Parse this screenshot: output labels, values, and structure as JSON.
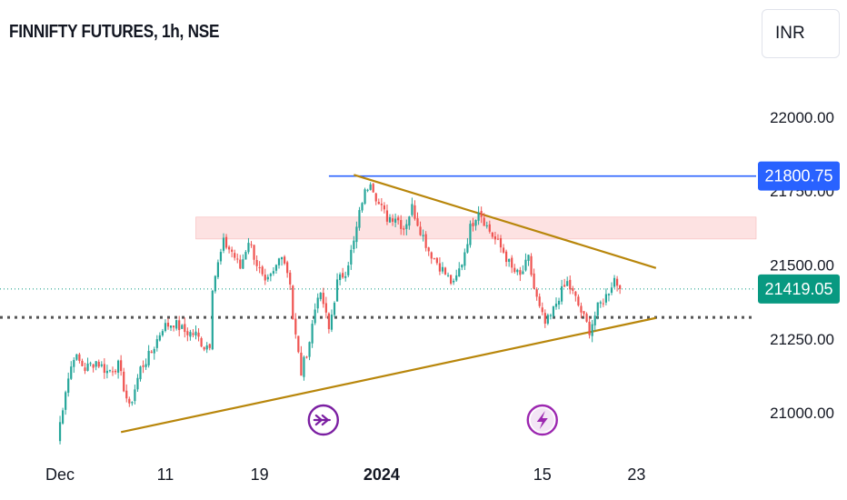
{
  "header": {
    "title": "FINNIFTY FUTURES, 1h, NSE",
    "currency": "INR"
  },
  "colors": {
    "up": "#26a69a",
    "down": "#ef5350",
    "trendline": "#b8860b",
    "resistance_line": "#2962ff",
    "current_price": "#089981",
    "zone_fill": "#fde2e2",
    "dotted_support": "#555555"
  },
  "chart_data": {
    "type": "candlestick",
    "symbol": "FINNIFTY FUTURES",
    "interval": "1h",
    "exchange": "NSE",
    "y_ticks": [
      "22000.00",
      "21750.00",
      "21500.00",
      "21250.00",
      "21000.00"
    ],
    "x_ticks": [
      {
        "label": "Dec",
        "bold": false,
        "bar": 1
      },
      {
        "label": "11",
        "bold": false,
        "bar": 39
      },
      {
        "label": "19",
        "bold": false,
        "bar": 73
      },
      {
        "label": "2024",
        "bold": true,
        "bar": 117
      },
      {
        "label": "15",
        "bold": false,
        "bar": 175
      },
      {
        "label": "23",
        "bold": false,
        "bar": 209
      }
    ],
    "ylim": [
      20890,
      22150
    ],
    "bars_visible": 216,
    "price_labels": [
      {
        "name": "resistance",
        "value": "21800.75",
        "price": 21800.75,
        "color": "#2962ff"
      },
      {
        "name": "current",
        "value": "21419.05",
        "price": 21419.05,
        "color": "#089981"
      }
    ],
    "dotted_support_price": 21323,
    "zone": {
      "from_bar": 50,
      "to_bar": 216,
      "price_low": 21588,
      "price_high": 21662
    },
    "resistance_line": {
      "from_bar": 98,
      "to_bar": 216,
      "price": 21800.75
    },
    "trendlines": [
      {
        "name": "upper",
        "start_bar": 107,
        "start_price": 21805,
        "end_bar": 216,
        "end_price": 21490
      },
      {
        "name": "lower",
        "start_bar": 23,
        "start_price": 20935,
        "end_bar": 216,
        "end_price": 21321
      }
    ],
    "event_icons": [
      {
        "name": "dividend-arrows-icon",
        "bar": 96,
        "color": "#7b1fa2"
      },
      {
        "name": "lightning-icon",
        "bar": 175,
        "color": "#9c27b0"
      }
    ],
    "anchors": [
      [
        0,
        20910
      ],
      [
        3,
        21080
      ],
      [
        6,
        21195
      ],
      [
        10,
        21150
      ],
      [
        14,
        21175
      ],
      [
        18,
        21140
      ],
      [
        22,
        21160
      ],
      [
        26,
        21015
      ],
      [
        30,
        21150
      ],
      [
        34,
        21205
      ],
      [
        38,
        21290
      ],
      [
        42,
        21305
      ],
      [
        46,
        21275
      ],
      [
        50,
        21265
      ],
      [
        53,
        21225
      ],
      [
        55,
        21235
      ],
      [
        56,
        21430
      ],
      [
        60,
        21575
      ],
      [
        63,
        21545
      ],
      [
        66,
        21490
      ],
      [
        69,
        21585
      ],
      [
        72,
        21505
      ],
      [
        75,
        21430
      ],
      [
        78,
        21470
      ],
      [
        81,
        21545
      ],
      [
        84,
        21445
      ],
      [
        85,
        21320
      ],
      [
        88,
        21135
      ],
      [
        91,
        21245
      ],
      [
        94,
        21405
      ],
      [
        96,
        21370
      ],
      [
        98,
        21280
      ],
      [
        101,
        21440
      ],
      [
        104,
        21480
      ],
      [
        107,
        21575
      ],
      [
        110,
        21720
      ],
      [
        113,
        21790
      ],
      [
        116,
        21705
      ],
      [
        119,
        21660
      ],
      [
        122,
        21665
      ],
      [
        125,
        21625
      ],
      [
        128,
        21695
      ],
      [
        131,
        21620
      ],
      [
        134,
        21550
      ],
      [
        137,
        21510
      ],
      [
        140,
        21470
      ],
      [
        143,
        21430
      ],
      [
        146,
        21510
      ],
      [
        149,
        21625
      ],
      [
        152,
        21690
      ],
      [
        155,
        21630
      ],
      [
        158,
        21585
      ],
      [
        161,
        21545
      ],
      [
        164,
        21485
      ],
      [
        167,
        21460
      ],
      [
        170,
        21520
      ],
      [
        172,
        21420
      ],
      [
        174,
        21350
      ],
      [
        176,
        21300
      ],
      [
        178,
        21325
      ],
      [
        181,
        21395
      ],
      [
        184,
        21440
      ],
      [
        187,
        21385
      ],
      [
        190,
        21320
      ],
      [
        192,
        21280
      ],
      [
        195,
        21355
      ],
      [
        198,
        21395
      ],
      [
        201,
        21455
      ],
      [
        203,
        21419
      ]
    ]
  }
}
